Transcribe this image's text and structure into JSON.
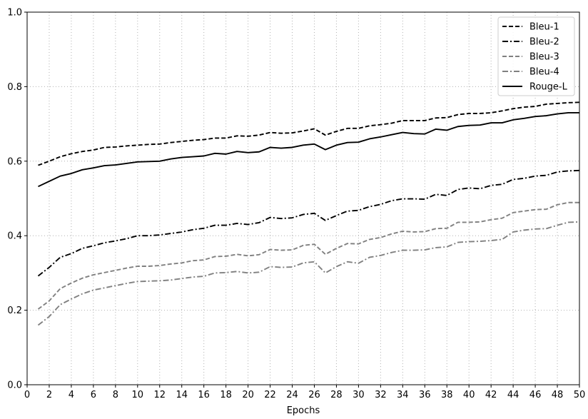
{
  "chart_data": {
    "type": "line",
    "title": "",
    "xlabel": "Epochs",
    "ylabel": "",
    "xlim": [
      0,
      50
    ],
    "ylim": [
      0.0,
      1.0
    ],
    "xticks": [
      0,
      2,
      4,
      6,
      8,
      10,
      12,
      14,
      16,
      18,
      20,
      22,
      24,
      26,
      28,
      30,
      32,
      34,
      36,
      38,
      40,
      42,
      44,
      46,
      48,
      50
    ],
    "yticks": [
      0.0,
      0.2,
      0.4,
      0.6,
      0.8,
      1.0
    ],
    "ytick_labels": [
      "0.0",
      "0.2",
      "0.4",
      "0.6",
      "0.8",
      "1.0"
    ],
    "grid": true,
    "legend_position": "top-right",
    "x": [
      1,
      2,
      3,
      4,
      5,
      6,
      7,
      8,
      9,
      10,
      11,
      12,
      13,
      14,
      15,
      16,
      17,
      18,
      19,
      20,
      21,
      22,
      23,
      24,
      25,
      26,
      27,
      28,
      29,
      30,
      31,
      32,
      33,
      34,
      35,
      36,
      37,
      38,
      39,
      40,
      41,
      42,
      43,
      44,
      45,
      46,
      47,
      48,
      49,
      50
    ],
    "series": [
      {
        "name": "Bleu-1",
        "color": "#000000",
        "dash": "dashed",
        "values": [
          0.589,
          0.6,
          0.612,
          0.62,
          0.626,
          0.63,
          0.637,
          0.638,
          0.641,
          0.643,
          0.645,
          0.646,
          0.65,
          0.653,
          0.656,
          0.658,
          0.662,
          0.662,
          0.668,
          0.667,
          0.67,
          0.677,
          0.675,
          0.676,
          0.681,
          0.687,
          0.67,
          0.68,
          0.688,
          0.688,
          0.695,
          0.698,
          0.702,
          0.709,
          0.709,
          0.709,
          0.716,
          0.717,
          0.725,
          0.728,
          0.728,
          0.73,
          0.735,
          0.741,
          0.745,
          0.747,
          0.753,
          0.755,
          0.757,
          0.758
        ]
      },
      {
        "name": "Bleu-2",
        "color": "#000000",
        "dash": "dashdot",
        "values": [
          0.292,
          0.315,
          0.342,
          0.352,
          0.366,
          0.373,
          0.381,
          0.386,
          0.392,
          0.4,
          0.4,
          0.402,
          0.406,
          0.41,
          0.416,
          0.42,
          0.428,
          0.428,
          0.433,
          0.43,
          0.435,
          0.449,
          0.446,
          0.448,
          0.457,
          0.46,
          0.441,
          0.454,
          0.466,
          0.468,
          0.478,
          0.484,
          0.494,
          0.499,
          0.499,
          0.498,
          0.511,
          0.508,
          0.524,
          0.528,
          0.526,
          0.535,
          0.538,
          0.551,
          0.554,
          0.56,
          0.562,
          0.571,
          0.574,
          0.575
        ]
      },
      {
        "name": "Bleu-3",
        "color": "#808080",
        "dash": "dashed",
        "values": [
          0.203,
          0.225,
          0.258,
          0.273,
          0.286,
          0.295,
          0.301,
          0.307,
          0.313,
          0.318,
          0.318,
          0.32,
          0.324,
          0.327,
          0.333,
          0.335,
          0.344,
          0.345,
          0.35,
          0.346,
          0.349,
          0.363,
          0.361,
          0.362,
          0.374,
          0.377,
          0.35,
          0.366,
          0.379,
          0.378,
          0.39,
          0.395,
          0.405,
          0.412,
          0.41,
          0.411,
          0.419,
          0.42,
          0.436,
          0.436,
          0.437,
          0.443,
          0.447,
          0.462,
          0.466,
          0.47,
          0.471,
          0.483,
          0.489,
          0.489
        ]
      },
      {
        "name": "Bleu-4",
        "color": "#808080",
        "dash": "dashdot",
        "values": [
          0.16,
          0.183,
          0.215,
          0.23,
          0.244,
          0.254,
          0.26,
          0.266,
          0.272,
          0.277,
          0.278,
          0.279,
          0.281,
          0.285,
          0.289,
          0.291,
          0.3,
          0.301,
          0.304,
          0.3,
          0.302,
          0.317,
          0.315,
          0.316,
          0.327,
          0.33,
          0.3,
          0.317,
          0.33,
          0.326,
          0.342,
          0.347,
          0.355,
          0.361,
          0.361,
          0.362,
          0.368,
          0.37,
          0.382,
          0.384,
          0.385,
          0.387,
          0.39,
          0.41,
          0.415,
          0.418,
          0.419,
          0.428,
          0.436,
          0.437
        ]
      },
      {
        "name": "Rouge-L",
        "color": "#000000",
        "dash": "solid",
        "values": [
          0.532,
          0.546,
          0.56,
          0.567,
          0.577,
          0.582,
          0.588,
          0.59,
          0.594,
          0.598,
          0.599,
          0.6,
          0.606,
          0.61,
          0.612,
          0.614,
          0.621,
          0.619,
          0.626,
          0.623,
          0.625,
          0.637,
          0.635,
          0.637,
          0.643,
          0.646,
          0.631,
          0.643,
          0.65,
          0.651,
          0.66,
          0.665,
          0.671,
          0.677,
          0.674,
          0.673,
          0.686,
          0.683,
          0.693,
          0.696,
          0.697,
          0.703,
          0.703,
          0.711,
          0.715,
          0.72,
          0.722,
          0.727,
          0.73,
          0.73
        ]
      }
    ]
  }
}
